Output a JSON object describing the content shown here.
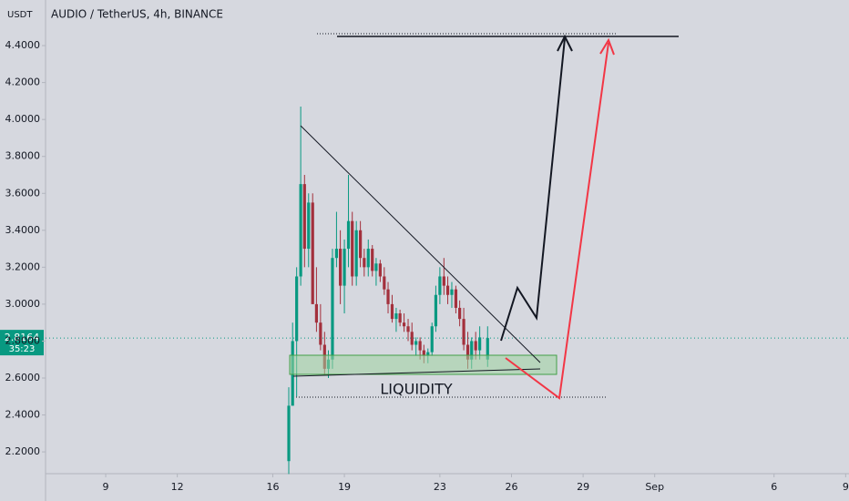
{
  "chart_data": {
    "type": "candlestick",
    "title": "AUDIO / TetherUS, 4h, BINANCE",
    "y_axis_unit": "USDT",
    "up_color": "#089981",
    "down_color": "#a3303c",
    "x": [
      16.67,
      16.83,
      17.0,
      17.17,
      17.33,
      17.5,
      17.67,
      17.83,
      18.0,
      18.17,
      18.33,
      18.5,
      18.67,
      18.83,
      19.0,
      19.17,
      19.33,
      19.5,
      19.67,
      19.83,
      20.0,
      20.17,
      20.33,
      20.5,
      20.67,
      20.83,
      21.0,
      21.17,
      21.33,
      21.5,
      21.67,
      21.83,
      22.0,
      22.17,
      22.33,
      22.5,
      22.67,
      22.83,
      23.0,
      23.17,
      23.33,
      23.5,
      23.67,
      23.83,
      24.0,
      24.17,
      24.33,
      24.5,
      24.67,
      25.0
    ],
    "open": [
      2.15,
      2.45,
      2.8,
      3.15,
      3.65,
      3.3,
      3.55,
      3.0,
      2.9,
      2.78,
      2.65,
      2.7,
      3.25,
      3.3,
      3.1,
      3.3,
      3.45,
      3.15,
      3.4,
      3.25,
      3.2,
      3.3,
      3.18,
      3.22,
      3.15,
      3.08,
      3.0,
      2.92,
      2.95,
      2.9,
      2.88,
      2.85,
      2.78,
      2.8,
      2.75,
      2.72,
      2.74,
      2.88,
      3.05,
      3.15,
      3.1,
      3.05,
      3.08,
      2.98,
      2.92,
      2.78,
      2.7,
      2.8,
      2.75,
      2.7
    ],
    "high": [
      2.55,
      2.9,
      3.2,
      4.07,
      3.7,
      3.6,
      3.6,
      3.2,
      3.0,
      2.85,
      2.75,
      3.3,
      3.5,
      3.4,
      3.35,
      3.7,
      3.5,
      3.45,
      3.45,
      3.3,
      3.35,
      3.32,
      3.25,
      3.24,
      3.2,
      3.12,
      3.05,
      2.98,
      2.97,
      2.95,
      2.92,
      2.9,
      2.82,
      2.82,
      2.78,
      2.76,
      2.9,
      3.1,
      3.2,
      3.25,
      3.15,
      3.12,
      3.1,
      3.02,
      2.98,
      2.85,
      2.82,
      2.85,
      2.88,
      2.88
    ],
    "low": [
      2.08,
      2.45,
      2.5,
      3.1,
      3.2,
      3.2,
      3.0,
      2.85,
      2.75,
      2.62,
      2.6,
      2.65,
      3.2,
      3.0,
      2.95,
      3.2,
      3.1,
      3.1,
      3.2,
      3.15,
      3.15,
      3.15,
      3.1,
      3.12,
      3.05,
      2.95,
      2.9,
      2.85,
      2.88,
      2.85,
      2.8,
      2.75,
      2.72,
      2.7,
      2.68,
      2.68,
      2.72,
      2.85,
      3.0,
      3.05,
      3.0,
      2.98,
      2.95,
      2.88,
      2.75,
      2.65,
      2.65,
      2.7,
      2.7,
      2.66
    ],
    "close": [
      2.45,
      2.8,
      3.15,
      3.65,
      3.3,
      3.55,
      3.0,
      2.9,
      2.78,
      2.65,
      2.7,
      3.25,
      3.3,
      3.1,
      3.3,
      3.45,
      3.15,
      3.4,
      3.25,
      3.2,
      3.3,
      3.18,
      3.22,
      3.15,
      3.08,
      3.0,
      2.92,
      2.95,
      2.9,
      2.88,
      2.85,
      2.78,
      2.8,
      2.75,
      2.72,
      2.74,
      2.88,
      3.05,
      3.15,
      3.1,
      3.05,
      3.08,
      2.98,
      2.92,
      2.78,
      2.7,
      2.8,
      2.75,
      2.82,
      2.8164
    ],
    "xlim": [
      6.48,
      40.14
    ],
    "xticks": [
      9,
      12,
      16,
      19,
      23,
      26,
      29,
      {
        "value": 32,
        "label": "Sep"
      },
      {
        "value": 37,
        "label": "6"
      },
      {
        "value": 40,
        "label": "9"
      }
    ],
    "ylim": [
      2.082,
      4.647
    ],
    "yticks": [
      {
        "value": 2.2,
        "label": "2.2000"
      },
      {
        "value": 2.4,
        "label": "2.4000"
      },
      {
        "value": 2.6,
        "label": "2.6000"
      },
      {
        "value": 2.8,
        "label": "2.8000"
      },
      {
        "value": 3.0,
        "label": "3.0000"
      },
      {
        "value": 3.2,
        "label": "3.2000"
      },
      {
        "value": 3.4,
        "label": "3.4000"
      },
      {
        "value": 3.6,
        "label": "3.6000"
      },
      {
        "value": 3.8,
        "label": "3.8000"
      },
      {
        "value": 4.0,
        "label": "4.0000"
      },
      {
        "value": 4.2,
        "label": "4.2000"
      },
      {
        "value": 4.4,
        "label": "4.4000"
      }
    ],
    "last_price": 2.8164,
    "countdown": "35:23",
    "annotation": "LIQUIDITY"
  }
}
